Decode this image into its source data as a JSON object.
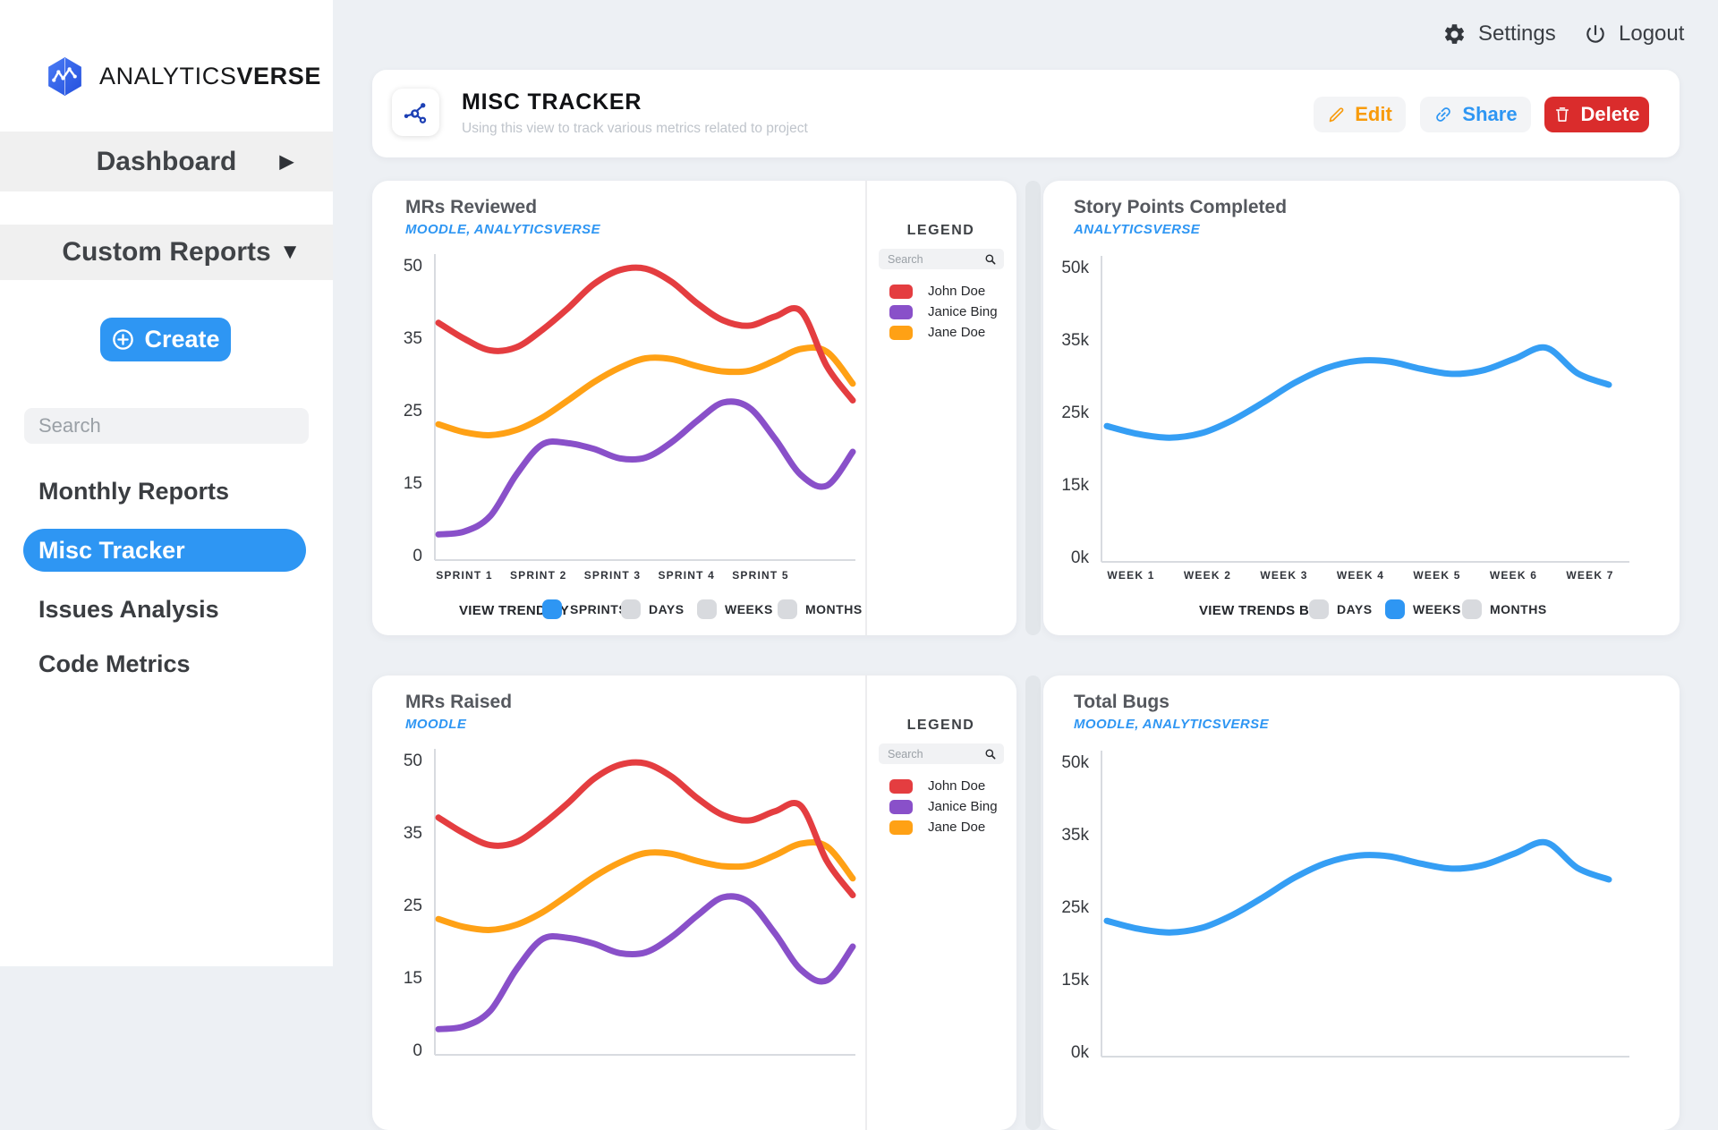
{
  "app": {
    "brand_first": "ANALYTICS",
    "brand_second": "VERSE"
  },
  "topbar": {
    "settings_label": "Settings",
    "logout_label": "Logout"
  },
  "sidebar": {
    "dashboard_label": "Dashboard",
    "custom_reports_label": "Custom Reports",
    "create_label": "Create",
    "search_placeholder": "Search",
    "items": [
      {
        "label": "Monthly Reports",
        "active": false
      },
      {
        "label": "Misc Tracker",
        "active": true
      },
      {
        "label": "Issues Analysis",
        "active": false
      },
      {
        "label": "Code Metrics",
        "active": false
      }
    ]
  },
  "header": {
    "title": "MISC TRACKER",
    "subtitle": "Using this view to track various metrics related to project",
    "edit_label": "Edit",
    "share_label": "Share",
    "delete_label": "Delete"
  },
  "legend": {
    "title": "LEGEND",
    "search_placeholder": "Search",
    "items": [
      {
        "label": "John Doe",
        "color": "#e43d40"
      },
      {
        "label": "Janice Bing",
        "color": "#8950c9"
      },
      {
        "label": "Jane Doe",
        "color": "#ffa115"
      }
    ]
  },
  "colors": {
    "accent_blue": "#2e96f3",
    "delete_red": "#da2c2c",
    "edit_orange": "#f89b0c",
    "line_blue": "#359ef4"
  },
  "chart_data": [
    {
      "id": "mrs-reviewed",
      "type": "line",
      "title": "MRs Reviewed",
      "subtitle": "MOODLE, ANALYTICSVERSE",
      "x_categories": [
        "SPRINT 1",
        "SPRINT 2",
        "SPRINT 3",
        "SPRINT 4",
        "SPRINT 5"
      ],
      "y_ticks": [
        {
          "v": 0,
          "label": "0"
        },
        {
          "v": 15,
          "label": "15"
        },
        {
          "v": 25,
          "label": "25"
        },
        {
          "v": 35,
          "label": "35"
        },
        {
          "v": 50,
          "label": "50"
        }
      ],
      "series": [
        {
          "name": "Janice Bing",
          "color": "#8950c9",
          "values": [
            4.2,
            4.8,
            8,
            16,
            20.2,
            20.4,
            19.6,
            18.3,
            18.4,
            20.5,
            23.5,
            26,
            25.3,
            21,
            16,
            14.3,
            19.2
          ]
        },
        {
          "name": "Jane Doe",
          "color": "#ffa115",
          "values": [
            23,
            21.9,
            21.5,
            22.2,
            23.9,
            26.3,
            28.8,
            30.8,
            32.1,
            32,
            31,
            30.3,
            30.4,
            31.8,
            33.4,
            33,
            28.6
          ]
        },
        {
          "name": "John Doe",
          "color": "#e43d40",
          "values": [
            38,
            34.8,
            33.2,
            33.6,
            36.5,
            41,
            46,
            48.9,
            49.2,
            46.5,
            42,
            38.5,
            37.4,
            39.3,
            40.4,
            31,
            26.3
          ]
        }
      ],
      "footer": {
        "label": "VIEW TREND BY",
        "options": [
          {
            "label": "SPRINTS",
            "selected": true
          },
          {
            "label": "DAYS",
            "selected": false
          },
          {
            "label": "WEEKS",
            "selected": false
          },
          {
            "label": "MONTHS",
            "selected": false
          }
        ]
      },
      "legend_title": "LEGEND"
    },
    {
      "id": "story-points",
      "type": "line",
      "title": "Story Points Completed",
      "subtitle": "ANALYTICSVERSE",
      "x_categories": [
        "WEEK 1",
        "WEEK 2",
        "WEEK 3",
        "WEEK 4",
        "WEEK 5",
        "WEEK 6",
        "WEEK 7"
      ],
      "y_ticks": [
        {
          "v": 0,
          "label": "0k"
        },
        {
          "v": 15000,
          "label": "15k"
        },
        {
          "v": 25000,
          "label": "25k"
        },
        {
          "v": 35000,
          "label": "35k"
        },
        {
          "v": 50000,
          "label": "50k"
        }
      ],
      "series": [
        {
          "name": "ANALYTICSVERSE",
          "color": "#359ef4",
          "values": [
            23000,
            21900,
            21400,
            22000,
            23800,
            26300,
            29000,
            31000,
            32000,
            31900,
            30900,
            30200,
            30700,
            32300,
            33800,
            30300,
            28700
          ]
        }
      ],
      "footer": {
        "label": "VIEW TRENDS BY",
        "options": [
          {
            "label": "DAYS",
            "selected": false
          },
          {
            "label": "WEEKS",
            "selected": true
          },
          {
            "label": "MONTHS",
            "selected": false
          }
        ]
      }
    },
    {
      "id": "mrs-raised",
      "type": "line",
      "title": "MRs Raised",
      "subtitle": "MOODLE",
      "y_ticks": [
        {
          "v": 0,
          "label": "0"
        },
        {
          "v": 15,
          "label": "15"
        },
        {
          "v": 25,
          "label": "25"
        },
        {
          "v": 35,
          "label": "35"
        },
        {
          "v": 50,
          "label": "50"
        }
      ],
      "series": [
        {
          "name": "Janice Bing",
          "color": "#8950c9",
          "values": [
            4.2,
            4.8,
            8,
            16,
            20.2,
            20.4,
            19.6,
            18.3,
            18.4,
            20.5,
            23.5,
            26,
            25.3,
            21,
            16,
            14.3,
            19.2
          ]
        },
        {
          "name": "Jane Doe",
          "color": "#ffa115",
          "values": [
            23,
            21.9,
            21.5,
            22.2,
            23.9,
            26.3,
            28.8,
            30.8,
            32.1,
            32,
            31,
            30.3,
            30.4,
            31.8,
            33.4,
            33,
            28.6
          ]
        },
        {
          "name": "John Doe",
          "color": "#e43d40",
          "values": [
            38,
            34.8,
            33.2,
            33.6,
            36.5,
            41,
            46,
            48.9,
            49.2,
            46.5,
            42,
            38.5,
            37.4,
            39.3,
            40.4,
            31,
            26.3
          ]
        }
      ],
      "legend_title": "LEGEND"
    },
    {
      "id": "total-bugs",
      "type": "line",
      "title": "Total Bugs",
      "subtitle": "MOODLE, ANALYTICSVERSE",
      "y_ticks": [
        {
          "v": 0,
          "label": "0k"
        },
        {
          "v": 15000,
          "label": "15k"
        },
        {
          "v": 25000,
          "label": "25k"
        },
        {
          "v": 35000,
          "label": "35k"
        },
        {
          "v": 50000,
          "label": "50k"
        }
      ],
      "series": [
        {
          "name": "MOODLE, ANALYTICSVERSE",
          "color": "#359ef4",
          "values": [
            23000,
            21900,
            21400,
            22000,
            23800,
            26300,
            29000,
            31000,
            32000,
            31900,
            30900,
            30200,
            30700,
            32300,
            33800,
            30300,
            28700
          ]
        }
      ]
    }
  ]
}
